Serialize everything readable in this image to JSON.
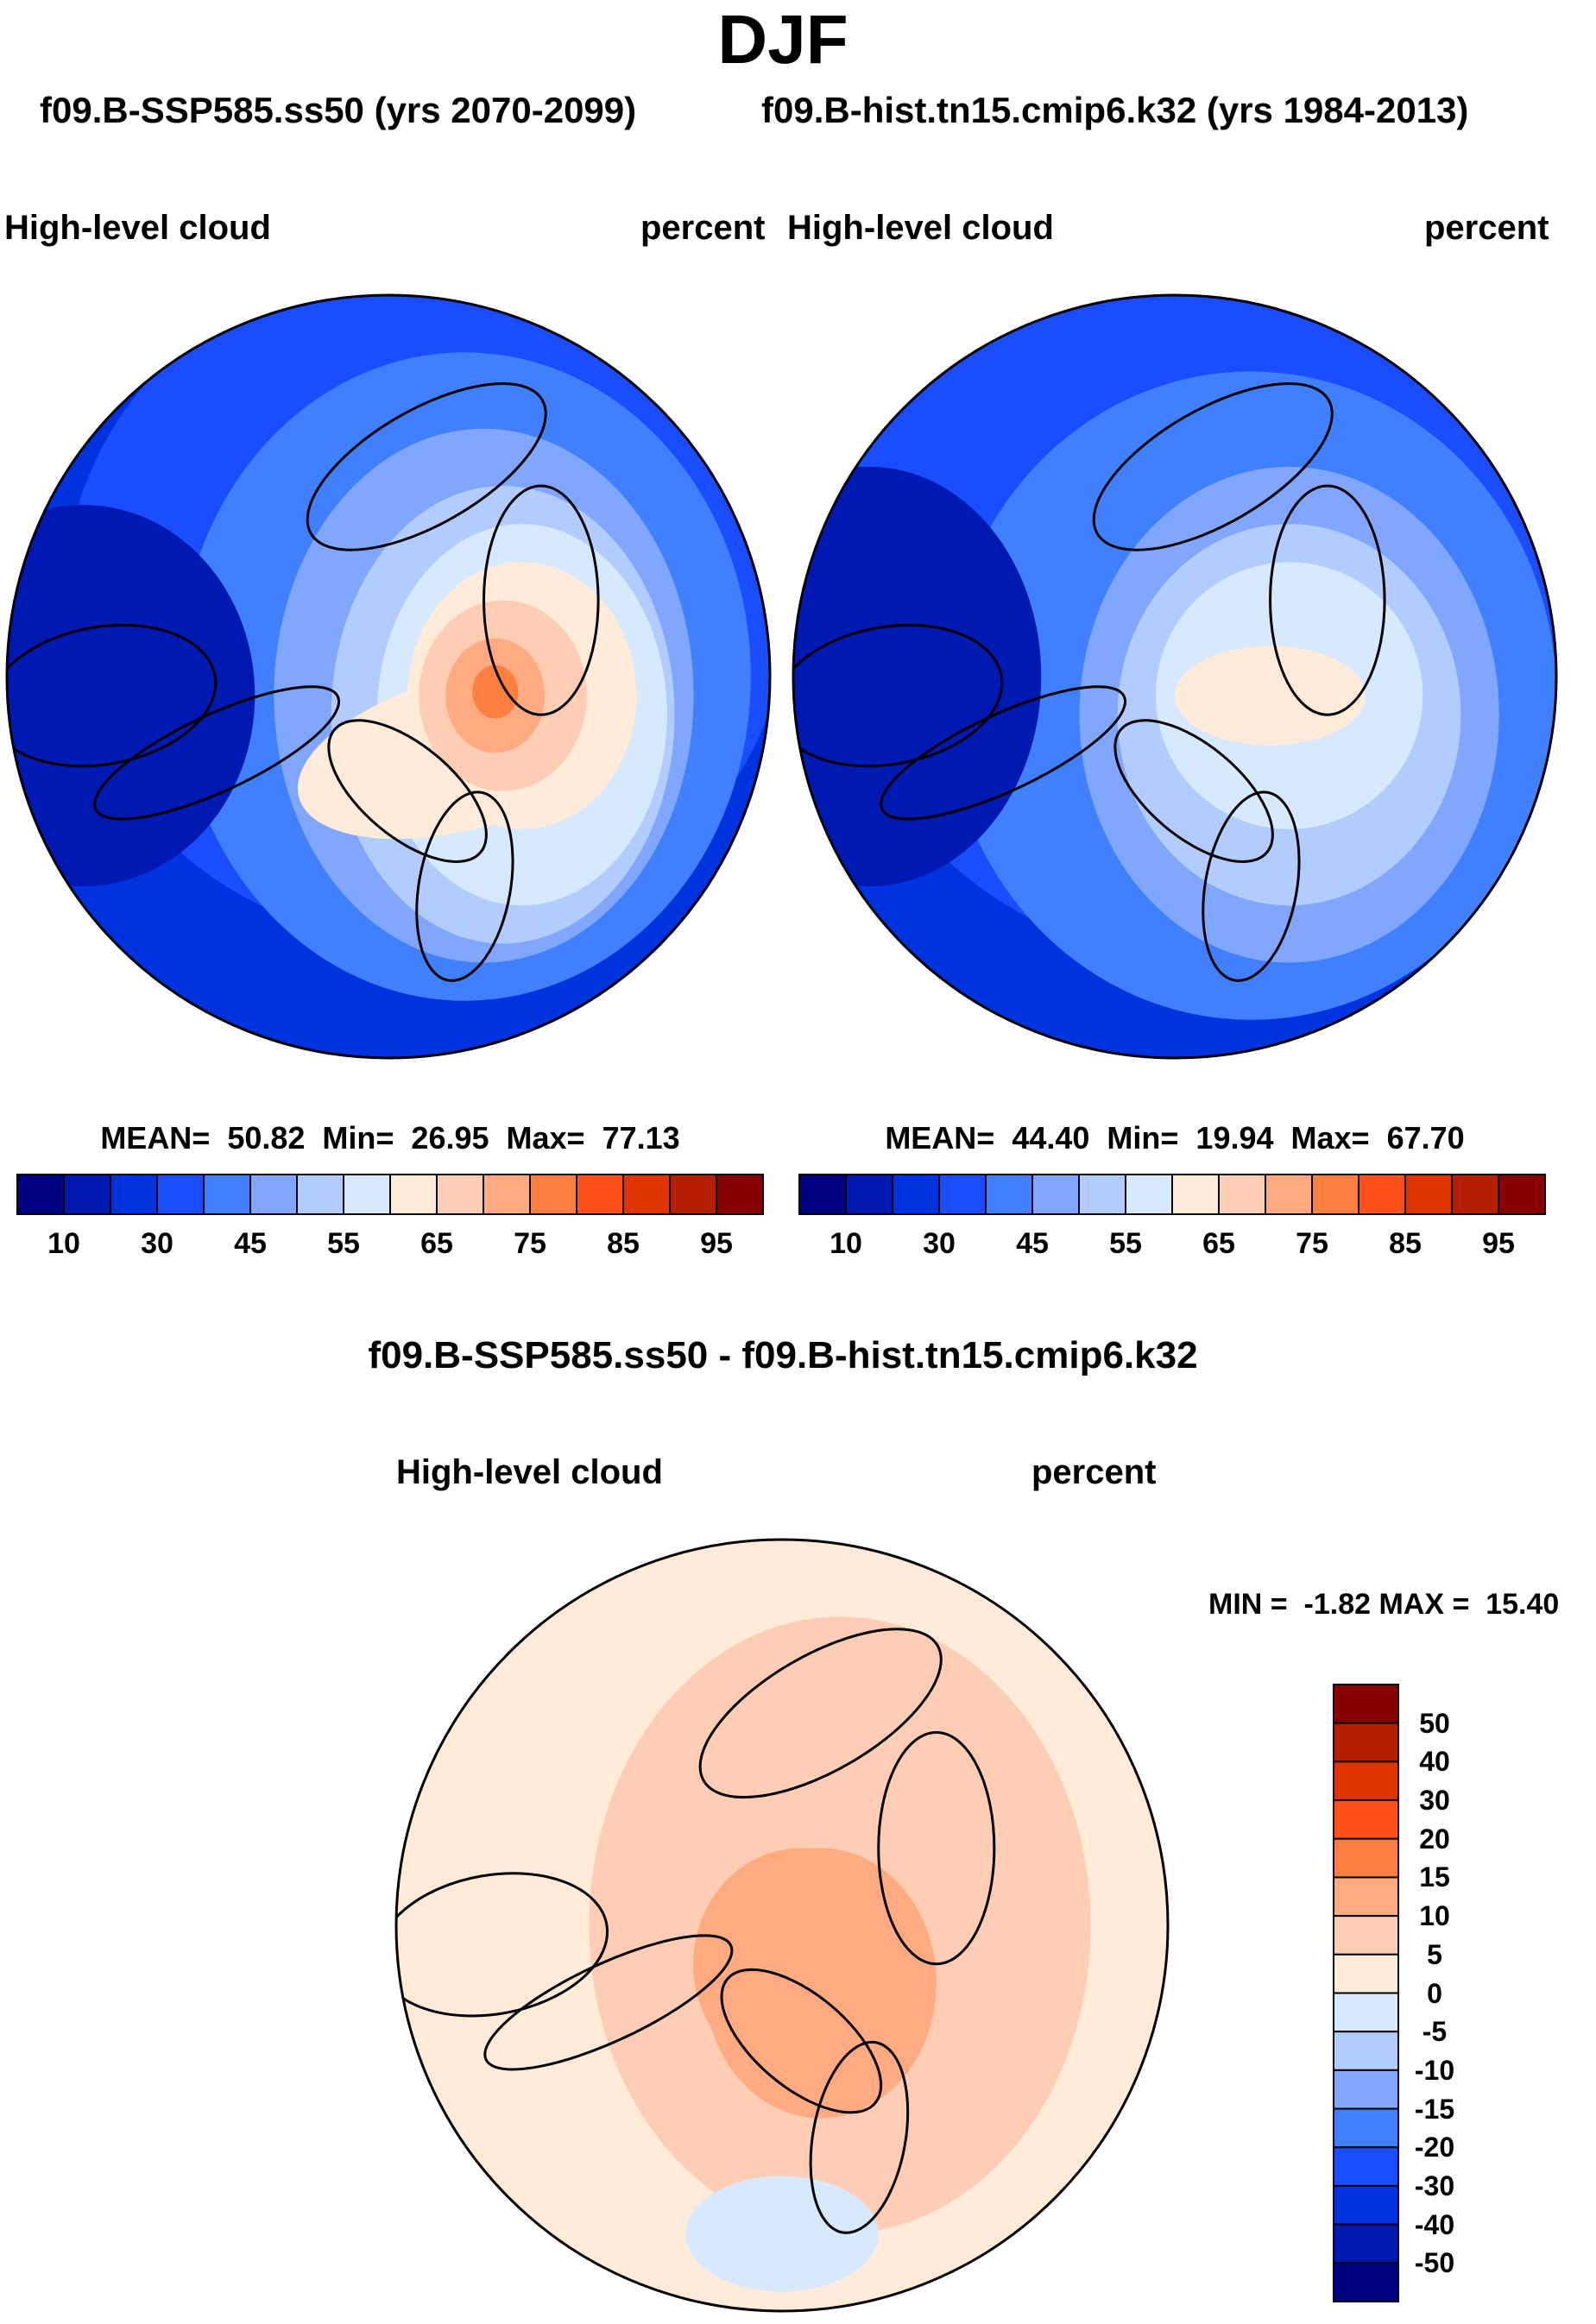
{
  "title": "DJF",
  "colors": [
    "#000080",
    "#0019b3",
    "#0033e0",
    "#1a4dff",
    "#4080ff",
    "#80a6ff",
    "#b3ccff",
    "#d6e9ff",
    "#ffebd7",
    "#ffcdb3",
    "#ffaa80",
    "#ff7f40",
    "#ff5019",
    "#e03300",
    "#b31f00",
    "#880000"
  ],
  "chart_data": [
    {
      "type": "heatmap",
      "projection": "north-polar-stereographic",
      "title": "f09.B-SSP585.ss50 (yrs 2070-2099)",
      "left_label": "High-level cloud",
      "right_label": "percent",
      "stats": "MEAN=  50.82  Min=  26.95  Max=  77.13",
      "mean": 50.82,
      "min": 26.95,
      "max": 77.13,
      "colorbar_levels": [
        5,
        10,
        20,
        30,
        40,
        45,
        50,
        55,
        60,
        65,
        70,
        75,
        80,
        85,
        90,
        95
      ],
      "colorbar_tick_labels": [
        "10",
        "30",
        "45",
        "55",
        "65",
        "75",
        "85",
        "95"
      ],
      "colorbar_orientation": "horizontal"
    },
    {
      "type": "heatmap",
      "projection": "north-polar-stereographic",
      "title": "f09.B-hist.tn15.cmip6.k32 (yrs 1984-2013)",
      "left_label": "High-level cloud",
      "right_label": "percent",
      "stats": "MEAN=  44.40  Min=  19.94  Max=  67.70",
      "mean": 44.4,
      "min": 19.94,
      "max": 67.7,
      "colorbar_tick_labels": [
        "10",
        "30",
        "45",
        "55",
        "65",
        "75",
        "85",
        "95"
      ],
      "colorbar_orientation": "horizontal"
    },
    {
      "type": "heatmap",
      "projection": "north-polar-stereographic",
      "title": "f09.B-SSP585.ss50 - f09.B-hist.tn15.cmip6.k32",
      "left_label": "High-level cloud",
      "right_label": "percent",
      "stats": "MIN =  -1.82 MAX =  15.40",
      "min": -1.82,
      "max": 15.4,
      "colorbar_tick_labels": [
        "50",
        "40",
        "30",
        "20",
        "15",
        "10",
        "5",
        "0",
        "-5",
        "-10",
        "-15",
        "-20",
        "-30",
        "-40",
        "-50"
      ],
      "colorbar_orientation": "vertical"
    }
  ]
}
